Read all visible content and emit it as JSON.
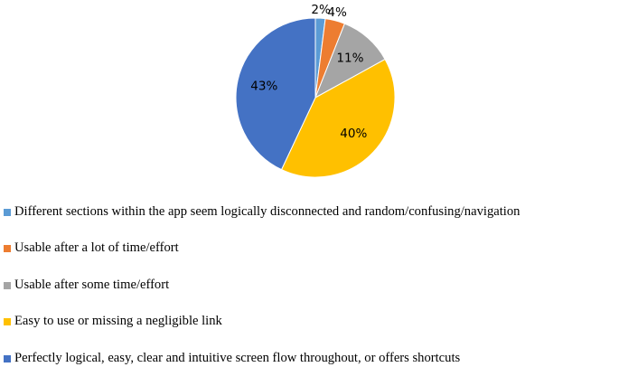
{
  "chart_data": {
    "type": "pie",
    "start_angle_deg": 0,
    "direction": "clockwise",
    "slices": [
      {
        "label": "Different sections within the app seem logically disconnected and random/confusing/navigation",
        "value": 2,
        "display": "2%",
        "color": "#5B9BD5"
      },
      {
        "label": "Usable after a lot of time/effort",
        "value": 4,
        "display": "4%",
        "color": "#ED7D31"
      },
      {
        "label": "Usable after some time/effort",
        "value": 11,
        "display": "11%",
        "color": "#A5A5A5"
      },
      {
        "label": "Easy to use or missing a negligible link",
        "value": 40,
        "display": "40%",
        "color": "#FFC000"
      },
      {
        "label": "Perfectly logical, easy, clear and intuitive screen flow throughout, or offers shortcuts",
        "value": 43,
        "display": "43%",
        "color": "#4472C4"
      }
    ],
    "legend_position": "bottom"
  }
}
